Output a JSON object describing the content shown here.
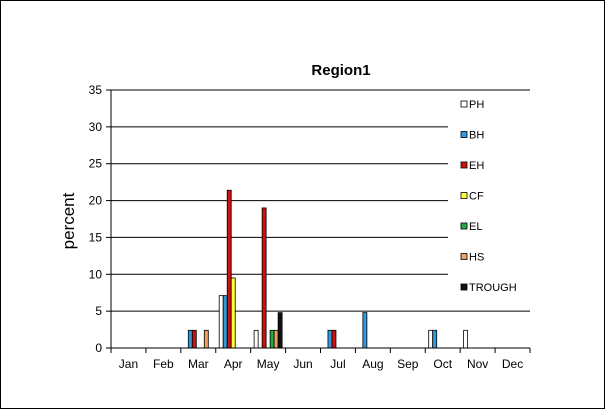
{
  "chart_data": {
    "type": "bar",
    "title": "Region1",
    "xlabel": "",
    "ylabel": "percent",
    "ylim": [
      0,
      35
    ],
    "yticks": [
      0,
      5,
      10,
      15,
      20,
      25,
      30,
      35
    ],
    "grid": true,
    "legend_position": "right",
    "categories": [
      "Jan",
      "Feb",
      "Mar",
      "Apr",
      "May",
      "Jun",
      "Jul",
      "Aug",
      "Sep",
      "Oct",
      "Nov",
      "Dec"
    ],
    "series": [
      {
        "name": "PH",
        "color": "#ffffff",
        "values": [
          0,
          0,
          0,
          7.1,
          2.4,
          0,
          0,
          0,
          0,
          2.4,
          2.4,
          0
        ]
      },
      {
        "name": "BH",
        "color": "#3399dd",
        "values": [
          0,
          0,
          2.4,
          7.1,
          0,
          0,
          2.4,
          4.8,
          0,
          2.4,
          0,
          0
        ]
      },
      {
        "name": "EH",
        "color": "#cc1111",
        "values": [
          0,
          0,
          2.4,
          21.4,
          19.0,
          0,
          2.4,
          0,
          0,
          0,
          0,
          0
        ]
      },
      {
        "name": "CF",
        "color": "#ffff44",
        "values": [
          0,
          0,
          0,
          9.5,
          0,
          0,
          0,
          0,
          0,
          0,
          0,
          0
        ]
      },
      {
        "name": "EL",
        "color": "#22aa44",
        "values": [
          0,
          0,
          0,
          0,
          2.4,
          0,
          0,
          0,
          0,
          0,
          0,
          0
        ]
      },
      {
        "name": "HS",
        "color": "#f0a060",
        "values": [
          0,
          0,
          2.4,
          0,
          2.4,
          0,
          0,
          0,
          0,
          0,
          0,
          0
        ]
      },
      {
        "name": "TROUGH",
        "color": "#111111",
        "values": [
          0,
          0,
          0,
          0,
          4.8,
          0,
          0,
          0,
          0,
          0,
          0,
          0
        ]
      }
    ]
  }
}
